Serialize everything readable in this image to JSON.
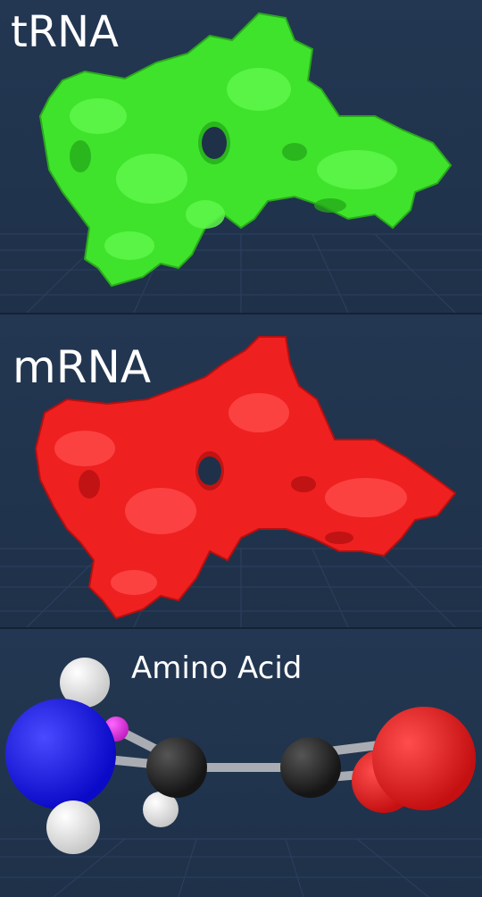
{
  "panels": {
    "trna": {
      "title": "tRNA",
      "color": "#3fe32c"
    },
    "mrna": {
      "title": "mRNA",
      "color": "#ef2020"
    },
    "amino": {
      "title": "Amino Acid"
    }
  },
  "atoms": {
    "nitrogen_color": "#1414f0",
    "carbon_color": "#222222",
    "oxygen_color": "#e51b1b",
    "hydrogen_color": "#f2f2f2",
    "phosphorus_color": "#e633e6"
  }
}
